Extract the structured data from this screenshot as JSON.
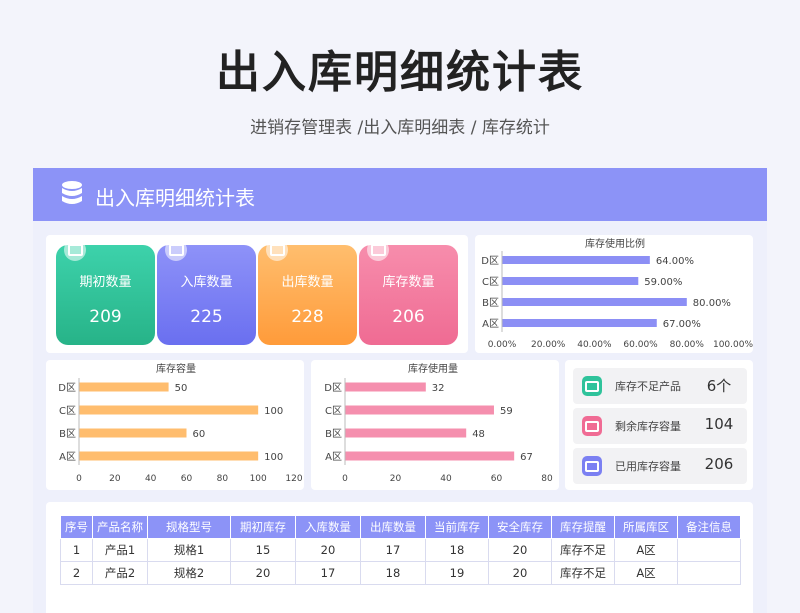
{
  "page": {
    "title": "出入库明细统计表",
    "subtitle": "进销存管理表 /出入库明细表 / 库存统计"
  },
  "banner": {
    "title": "出入库明细统计表",
    "icon": "database-icon"
  },
  "stats": [
    {
      "label": "期初数量",
      "value": "209",
      "color_top": "#3dd2ab",
      "color_bottom": "#27b388"
    },
    {
      "label": "入库数量",
      "value": "225",
      "color_top": "#8e92f8",
      "color_bottom": "#6a6ff0"
    },
    {
      "label": "出库数量",
      "value": "228",
      "color_top": "#ffbe6e",
      "color_bottom": "#ff9b3a"
    },
    {
      "label": "库存数量",
      "value": "206",
      "color_top": "#f78dac",
      "color_bottom": "#ef6b93"
    }
  ],
  "chart_data": [
    {
      "type": "bar",
      "orientation": "horizontal",
      "title": "库存使用比例",
      "categories": [
        "D区",
        "C区",
        "B区",
        "A区"
      ],
      "values": [
        64.0,
        59.0,
        80.0,
        67.0
      ],
      "value_labels": [
        "64.00%",
        "59.00%",
        "80.00%",
        "67.00%"
      ],
      "xlim": [
        0,
        100
      ],
      "ticks": [
        "0.00%",
        "20.00%",
        "40.00%",
        "60.00%",
        "80.00%",
        "100.00%"
      ],
      "color": "#8c8ff5"
    },
    {
      "type": "bar",
      "orientation": "horizontal",
      "title": "库存容量",
      "categories": [
        "D区",
        "C区",
        "B区",
        "A区"
      ],
      "values": [
        50,
        100,
        60,
        100
      ],
      "value_labels": [
        "50",
        "100",
        "60",
        "100"
      ],
      "xlim": [
        0,
        120
      ],
      "ticks": [
        "0",
        "20",
        "40",
        "60",
        "80",
        "100",
        "120"
      ],
      "color": "#ffbd6e"
    },
    {
      "type": "bar",
      "orientation": "horizontal",
      "title": "库存使用量",
      "categories": [
        "D区",
        "C区",
        "B区",
        "A区"
      ],
      "values": [
        32,
        59,
        48,
        67
      ],
      "value_labels": [
        "32",
        "59",
        "48",
        "67"
      ],
      "xlim": [
        0,
        80
      ],
      "ticks": [
        "0",
        "20",
        "40",
        "60",
        "80"
      ],
      "color": "#f58fae"
    }
  ],
  "summary": [
    {
      "label": "库存不足产品",
      "value": "6个",
      "icon": "low-stock-icon",
      "color": "#2fc39b"
    },
    {
      "label": "剩余库存容量",
      "value": "104",
      "icon": "remaining-capacity-icon",
      "color": "#f06b94"
    },
    {
      "label": "已用库存容量",
      "value": "206",
      "icon": "used-capacity-icon",
      "color": "#7b80f2"
    }
  ],
  "table": {
    "headers": [
      "序号",
      "产品名称",
      "规格型号",
      "期初库存",
      "入库数量",
      "出库数量",
      "当前库存",
      "安全库存",
      "库存提醒",
      "所属库区",
      "备注信息"
    ],
    "rows": [
      [
        "1",
        "产品1",
        "规格1",
        "15",
        "20",
        "17",
        "18",
        "20",
        "库存不足",
        "A区",
        ""
      ],
      [
        "2",
        "产品2",
        "规格2",
        "20",
        "17",
        "18",
        "19",
        "20",
        "库存不足",
        "A区",
        ""
      ]
    ]
  }
}
